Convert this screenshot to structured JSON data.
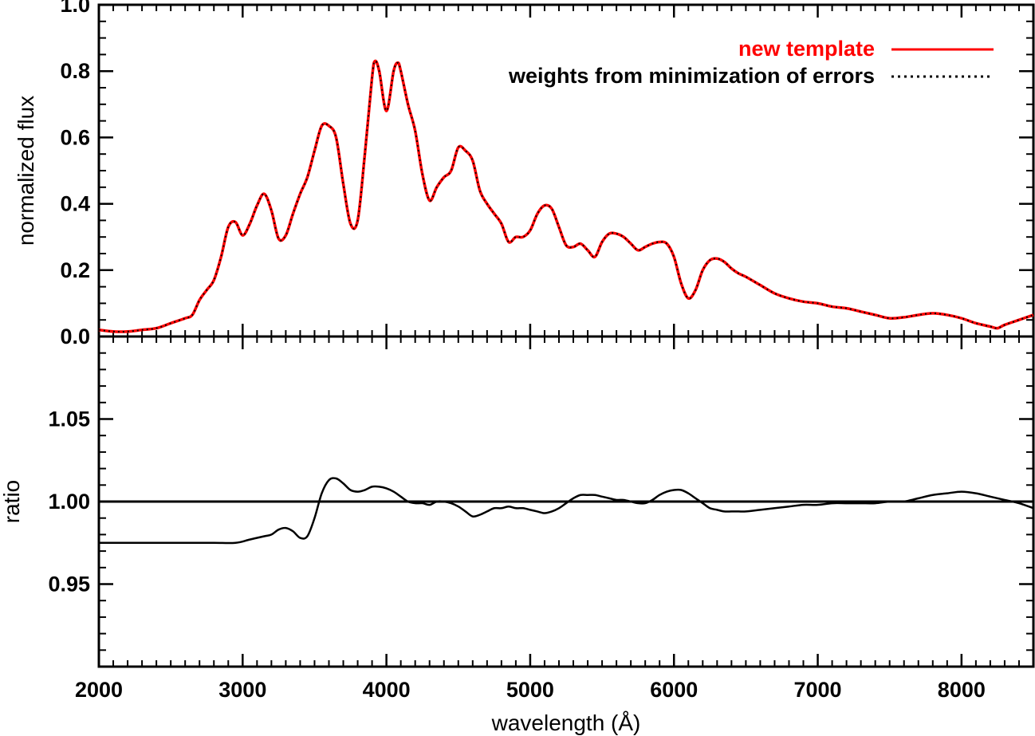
{
  "chart_data": [
    {
      "type": "line",
      "panel": "top",
      "ylabel": "normalized flux",
      "xlim": [
        2000,
        8500
      ],
      "ylim": [
        0.0,
        1.0
      ],
      "xticks": [
        2000,
        3000,
        4000,
        5000,
        6000,
        7000,
        8000
      ],
      "yticks": [
        "0.0",
        "0.2",
        "0.4",
        "0.6",
        "0.8",
        "1.0"
      ],
      "ytick_values": [
        0.0,
        0.2,
        0.4,
        0.6,
        0.8,
        1.0
      ],
      "legend": {
        "placement": "top-right",
        "entries": [
          {
            "label": "new template",
            "color": "#ff0000",
            "style": "solid"
          },
          {
            "label": "weights from minimization of errors",
            "color": "#000000",
            "style": "dotted"
          }
        ]
      },
      "series": [
        {
          "name": "new template",
          "color": "#ff0000",
          "style": "solid",
          "x": [
            2000,
            2100,
            2200,
            2300,
            2400,
            2500,
            2600,
            2650,
            2700,
            2750,
            2800,
            2850,
            2900,
            2950,
            3000,
            3050,
            3100,
            3150,
            3200,
            3250,
            3300,
            3350,
            3400,
            3450,
            3500,
            3550,
            3600,
            3650,
            3700,
            3750,
            3800,
            3850,
            3900,
            3920,
            3950,
            4000,
            4050,
            4080,
            4100,
            4150,
            4200,
            4250,
            4300,
            4350,
            4400,
            4450,
            4500,
            4550,
            4600,
            4650,
            4700,
            4750,
            4800,
            4850,
            4900,
            4950,
            5000,
            5050,
            5100,
            5150,
            5200,
            5250,
            5300,
            5350,
            5400,
            5450,
            5500,
            5550,
            5600,
            5650,
            5700,
            5750,
            5800,
            5850,
            5900,
            5950,
            6000,
            6050,
            6100,
            6150,
            6200,
            6250,
            6300,
            6350,
            6400,
            6450,
            6500,
            6600,
            6700,
            6800,
            6900,
            7000,
            7100,
            7200,
            7300,
            7400,
            7500,
            7600,
            7700,
            7800,
            7900,
            8000,
            8100,
            8200,
            8250,
            8300,
            8400,
            8500
          ],
          "values": [
            0.02,
            0.015,
            0.015,
            0.02,
            0.025,
            0.04,
            0.055,
            0.065,
            0.11,
            0.14,
            0.17,
            0.24,
            0.33,
            0.345,
            0.305,
            0.34,
            0.395,
            0.43,
            0.38,
            0.295,
            0.305,
            0.37,
            0.43,
            0.48,
            0.56,
            0.635,
            0.635,
            0.6,
            0.46,
            0.34,
            0.35,
            0.55,
            0.78,
            0.83,
            0.8,
            0.68,
            0.8,
            0.825,
            0.8,
            0.7,
            0.62,
            0.49,
            0.41,
            0.45,
            0.48,
            0.5,
            0.57,
            0.56,
            0.53,
            0.44,
            0.4,
            0.37,
            0.34,
            0.285,
            0.3,
            0.3,
            0.32,
            0.37,
            0.395,
            0.385,
            0.33,
            0.275,
            0.27,
            0.28,
            0.26,
            0.24,
            0.285,
            0.31,
            0.31,
            0.3,
            0.28,
            0.26,
            0.27,
            0.28,
            0.285,
            0.28,
            0.24,
            0.16,
            0.115,
            0.14,
            0.2,
            0.23,
            0.235,
            0.225,
            0.205,
            0.19,
            0.18,
            0.155,
            0.13,
            0.115,
            0.105,
            0.1,
            0.09,
            0.085,
            0.075,
            0.065,
            0.055,
            0.058,
            0.065,
            0.07,
            0.065,
            0.055,
            0.04,
            0.03,
            0.025,
            0.035,
            0.05,
            0.065
          ]
        },
        {
          "name": "weights from minimization of errors",
          "color": "#000000",
          "style": "dotted",
          "same_as": "new template"
        }
      ]
    },
    {
      "type": "line",
      "panel": "bottom",
      "xlabel": "wavelength (Å)",
      "ylabel": "ratio",
      "xlim": [
        2000,
        8500
      ],
      "ylim": [
        0.9,
        1.1
      ],
      "xticks": [
        2000,
        3000,
        4000,
        5000,
        6000,
        7000,
        8000
      ],
      "yticks": [
        "0.95",
        "1.00",
        "1.05"
      ],
      "ytick_values": [
        0.95,
        1.0,
        1.05
      ],
      "reference_line": 1.0,
      "series": [
        {
          "color": "#000000",
          "x": [
            2000,
            2200,
            2400,
            2600,
            2800,
            2950,
            3050,
            3150,
            3200,
            3250,
            3300,
            3350,
            3400,
            3450,
            3500,
            3550,
            3600,
            3650,
            3700,
            3750,
            3800,
            3850,
            3900,
            3950,
            4000,
            4050,
            4100,
            4150,
            4200,
            4250,
            4300,
            4350,
            4400,
            4450,
            4500,
            4550,
            4600,
            4650,
            4700,
            4750,
            4800,
            4850,
            4900,
            4950,
            5000,
            5050,
            5100,
            5150,
            5200,
            5250,
            5300,
            5350,
            5400,
            5450,
            5500,
            5550,
            5600,
            5650,
            5700,
            5750,
            5800,
            5850,
            5900,
            5950,
            6000,
            6050,
            6100,
            6150,
            6200,
            6250,
            6300,
            6350,
            6400,
            6450,
            6500,
            6600,
            6700,
            6800,
            6900,
            7000,
            7100,
            7200,
            7300,
            7400,
            7500,
            7600,
            7700,
            7800,
            7900,
            8000,
            8100,
            8200,
            8300,
            8400,
            8500
          ],
          "values": [
            0.975,
            0.975,
            0.975,
            0.975,
            0.975,
            0.975,
            0.977,
            0.979,
            0.98,
            0.983,
            0.984,
            0.982,
            0.978,
            0.979,
            0.99,
            1.005,
            1.013,
            1.014,
            1.011,
            1.007,
            1.006,
            1.007,
            1.009,
            1.009,
            1.008,
            1.006,
            1.003,
            1.0,
            0.999,
            0.999,
            0.998,
            1.0,
            1.0,
            0.999,
            0.997,
            0.994,
            0.991,
            0.992,
            0.994,
            0.996,
            0.996,
            0.997,
            0.996,
            0.996,
            0.995,
            0.994,
            0.993,
            0.994,
            0.996,
            0.999,
            1.002,
            1.004,
            1.004,
            1.004,
            1.003,
            1.002,
            1.001,
            1.001,
            1.0,
            0.999,
            0.999,
            1.001,
            1.004,
            1.006,
            1.007,
            1.007,
            1.005,
            1.002,
            0.999,
            0.996,
            0.995,
            0.994,
            0.994,
            0.994,
            0.994,
            0.995,
            0.996,
            0.997,
            0.998,
            0.998,
            0.999,
            0.999,
            0.999,
            0.999,
            1.0,
            1.0,
            1.002,
            1.004,
            1.005,
            1.006,
            1.005,
            1.003,
            1.001,
            0.999,
            0.996
          ]
        }
      ]
    }
  ]
}
